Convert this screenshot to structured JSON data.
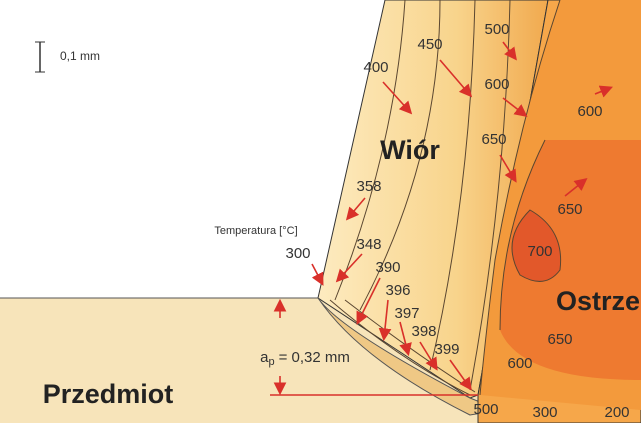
{
  "scale_bar": "0,1 mm",
  "legend_title": "Temperatura [°C]",
  "regions": {
    "chip": "Wiór",
    "tool": "Ostrze",
    "workpiece": "Przedmiot"
  },
  "depth_of_cut": {
    "symbol": "a",
    "subscript": "p",
    "text": "= 0,32 mm"
  },
  "isotherm_labels": [
    "400",
    "450",
    "500",
    "600",
    "600",
    "650",
    "358",
    "300",
    "348",
    "390",
    "396",
    "397",
    "398",
    "399",
    "650",
    "700",
    "650",
    "600",
    "500",
    "300",
    "200"
  ]
}
